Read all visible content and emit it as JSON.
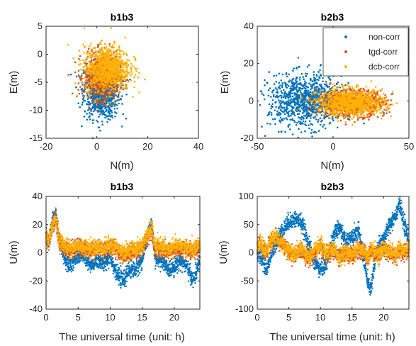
{
  "colors": {
    "non_corr": "#0072BD",
    "tgd_corr": "#D95319",
    "dcb_corr": "#FFB000"
  },
  "legend": {
    "placement": "top-right",
    "entries": [
      "non-corr",
      "tgd-corr",
      "dcb-corr"
    ]
  },
  "chart_data": [
    {
      "type": "scatter",
      "title": "b1b3",
      "xlabel": "N(m)",
      "ylabel": "E(m)",
      "xlim": [
        -20,
        40
      ],
      "ylim": [
        -15,
        5
      ],
      "xticks": [
        -20,
        0,
        20,
        40
      ],
      "yticks": [
        -15,
        -10,
        -5,
        0,
        5
      ],
      "series": [
        {
          "name": "non-corr",
          "cx": 2,
          "cy": -6.5,
          "sx": 3.5,
          "sy": 2.5,
          "n": 900
        },
        {
          "name": "tgd-corr",
          "cx": 2,
          "cy": -4,
          "sx": 3.5,
          "sy": 2.0,
          "n": 800
        },
        {
          "name": "dcb-corr",
          "cx": 4,
          "cy": -2.5,
          "sx": 4.5,
          "sy": 2.0,
          "n": 900
        }
      ]
    },
    {
      "type": "scatter",
      "title": "b2b3",
      "xlabel": "N(m)",
      "ylabel": "E(m)",
      "xlim": [
        -50,
        50
      ],
      "ylim": [
        -20,
        40
      ],
      "xticks": [
        -50,
        0,
        50
      ],
      "yticks": [
        -20,
        0,
        20,
        40
      ],
      "series": [
        {
          "name": "non-corr",
          "cx": -18,
          "cy": 0,
          "sx": 12,
          "sy": 7,
          "n": 1000
        },
        {
          "name": "tgd-corr",
          "cx": 12,
          "cy": -1,
          "sx": 11,
          "sy": 3.5,
          "n": 800
        },
        {
          "name": "dcb-corr",
          "cx": 12,
          "cy": -1,
          "sx": 11,
          "sy": 3.5,
          "n": 900
        }
      ]
    },
    {
      "type": "line",
      "title": "b1b3",
      "xlabel": "The universal time (unit: h)",
      "ylabel": "U(m)",
      "xlim": [
        0,
        24
      ],
      "ylim": [
        -40,
        40
      ],
      "xticks": [
        0,
        5,
        10,
        15,
        20
      ],
      "yticks": [
        -40,
        -20,
        0,
        20,
        40
      ],
      "series": [
        {
          "name": "non-corr",
          "x": [
            0,
            0.5,
            1,
            1.5,
            2,
            3,
            4,
            5,
            6,
            7,
            8,
            9,
            10,
            11,
            12,
            13,
            14,
            15,
            16,
            16.5,
            17,
            18,
            19,
            20,
            21,
            22,
            23,
            24
          ],
          "values": [
            12,
            8,
            22,
            28,
            10,
            -5,
            -8,
            -2,
            -3,
            -10,
            -5,
            -8,
            -2,
            -15,
            -20,
            -12,
            -12,
            -5,
            15,
            20,
            -5,
            -5,
            -12,
            -10,
            -5,
            -10,
            -20,
            -5
          ]
        },
        {
          "name": "tgd-corr",
          "x": [
            0,
            0.5,
            1,
            1.5,
            2,
            3,
            4,
            5,
            6,
            7,
            8,
            9,
            10,
            11,
            12,
            13,
            14,
            15,
            16,
            16.5,
            17,
            18,
            19,
            20,
            21,
            22,
            23,
            24
          ],
          "values": [
            10,
            8,
            18,
            25,
            8,
            3,
            2,
            4,
            3,
            2,
            3,
            2,
            4,
            2,
            -2,
            0,
            1,
            3,
            12,
            16,
            2,
            3,
            0,
            2,
            3,
            1,
            0,
            3
          ]
        },
        {
          "name": "dcb-corr",
          "x": [
            0,
            0.5,
            1,
            1.5,
            2,
            3,
            4,
            5,
            6,
            7,
            8,
            9,
            10,
            11,
            12,
            13,
            14,
            15,
            16,
            16.5,
            17,
            18,
            19,
            20,
            21,
            22,
            23,
            24
          ],
          "values": [
            11,
            9,
            20,
            26,
            9,
            5,
            3,
            5,
            4,
            3,
            4,
            3,
            6,
            3,
            0,
            2,
            3,
            5,
            14,
            18,
            4,
            5,
            2,
            4,
            5,
            3,
            2,
            6
          ]
        }
      ]
    },
    {
      "type": "line",
      "title": "b2b3",
      "xlabel": "The universal time (unit: h)",
      "ylabel": "U(m)",
      "xlim": [
        0,
        24
      ],
      "ylim": [
        -100,
        100
      ],
      "xticks": [
        0,
        5,
        10,
        15,
        20
      ],
      "yticks": [
        -100,
        -50,
        0,
        50,
        100
      ],
      "series": [
        {
          "name": "non-corr",
          "x": [
            0,
            0.5,
            1,
            1.5,
            2,
            3,
            4,
            5,
            6,
            7,
            8,
            9,
            10,
            11,
            12,
            13,
            14,
            15,
            16,
            17,
            17.5,
            18,
            19,
            20,
            21,
            22,
            22.5,
            23,
            24
          ],
          "values": [
            0,
            -5,
            -20,
            -30,
            -10,
            20,
            40,
            55,
            60,
            55,
            20,
            -15,
            -30,
            -20,
            30,
            45,
            20,
            30,
            40,
            -20,
            -55,
            -65,
            10,
            25,
            50,
            70,
            90,
            60,
            20
          ]
        },
        {
          "name": "tgd-corr",
          "x": [
            0,
            0.5,
            1,
            1.5,
            2,
            3,
            4,
            5,
            6,
            7,
            8,
            9,
            10,
            11,
            12,
            13,
            14,
            15,
            16,
            17,
            17.5,
            18,
            19,
            20,
            21,
            22,
            22.5,
            23,
            24
          ],
          "values": [
            10,
            15,
            5,
            0,
            20,
            25,
            15,
            0,
            -5,
            5,
            -10,
            0,
            10,
            -5,
            5,
            -10,
            0,
            -5,
            5,
            0,
            -10,
            5,
            -5,
            5,
            0,
            -5,
            5,
            0,
            5
          ]
        },
        {
          "name": "dcb-corr",
          "x": [
            0,
            0.5,
            1,
            1.5,
            2,
            3,
            4,
            5,
            6,
            7,
            8,
            9,
            10,
            11,
            12,
            13,
            14,
            15,
            16,
            17,
            17.5,
            18,
            19,
            20,
            21,
            22,
            22.5,
            23,
            24
          ],
          "values": [
            12,
            18,
            8,
            2,
            22,
            28,
            18,
            2,
            -3,
            8,
            -8,
            2,
            12,
            -3,
            8,
            -8,
            2,
            -3,
            8,
            2,
            -8,
            8,
            -3,
            8,
            2,
            -3,
            8,
            2,
            8
          ]
        }
      ]
    }
  ]
}
